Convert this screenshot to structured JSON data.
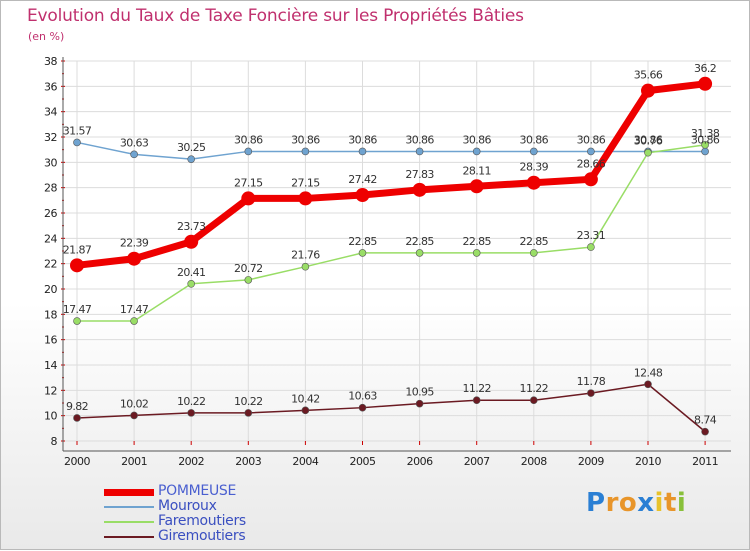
{
  "title": "Evolution du Taux de Taxe Foncière sur les Propriétés Bâties",
  "subtitle": "(en %)",
  "logo": {
    "text": "Proxiti",
    "letters": [
      "P",
      "r",
      "o",
      "x",
      "i",
      "t",
      "i"
    ],
    "colors": [
      "#2a7fd4",
      "#e8952a",
      "#e8952a",
      "#2a7fd4",
      "#e8c22a",
      "#e8952a",
      "#88c03a"
    ]
  },
  "chart_data": {
    "type": "line",
    "title": "Evolution du Taux de Taxe Foncière sur les Propriétés Bâties",
    "ylabel": "(en %)",
    "xlabel": "",
    "ylim": [
      8,
      38
    ],
    "yticks": [
      "8",
      "10",
      "12",
      "14",
      "16",
      "18",
      "20",
      "22",
      "24",
      "26",
      "28",
      "30",
      "32",
      "34",
      "36",
      "38"
    ],
    "categories": [
      "2000",
      "2001",
      "2002",
      "2003",
      "2004",
      "2005",
      "2006",
      "2007",
      "2008",
      "2009",
      "2010",
      "2011"
    ],
    "grid": true,
    "legend_position": "bottom-left",
    "series": [
      {
        "name": "POMMEUSE",
        "color": "#ee0000",
        "width": 7,
        "marker": 7,
        "values": [
          21.87,
          22.39,
          23.73,
          27.15,
          27.15,
          27.42,
          27.83,
          28.11,
          28.39,
          28.66,
          35.66,
          36.2
        ],
        "labels": [
          "21.87",
          "22.39",
          "23.73",
          "27.15",
          "27.15",
          "27.42",
          "27.83",
          "28.11",
          "28.39",
          "28.66",
          "35.66",
          "36.2"
        ]
      },
      {
        "name": "Mouroux",
        "color": "#6fa3d0",
        "width": 1.5,
        "marker": 3.5,
        "values": [
          31.57,
          30.63,
          30.25,
          30.86,
          30.86,
          30.86,
          30.86,
          30.86,
          30.86,
          30.86,
          30.86,
          30.86
        ],
        "labels": [
          "31.57",
          "30.63",
          "30.25",
          "30.86",
          "30.86",
          "30.86",
          "30.86",
          "30.86",
          "30.86",
          "30.86",
          "30.86",
          "30.86"
        ]
      },
      {
        "name": "Faremoutiers",
        "color": "#99dd66",
        "width": 1.5,
        "marker": 3.5,
        "values": [
          17.47,
          17.47,
          20.41,
          20.72,
          21.76,
          22.85,
          22.85,
          22.85,
          22.85,
          23.31,
          30.76,
          31.38
        ],
        "labels": [
          "17.47",
          "17.47",
          "20.41",
          "20.72",
          "21.76",
          "22.85",
          "22.85",
          "22.85",
          "22.85",
          "23.31",
          "30.76",
          "31.38"
        ]
      },
      {
        "name": "Giremoutiers",
        "color": "#6b1a22",
        "width": 1.5,
        "marker": 3.5,
        "values": [
          9.82,
          10.02,
          10.22,
          10.22,
          10.42,
          10.63,
          10.95,
          11.22,
          11.22,
          11.78,
          12.48,
          8.74
        ],
        "labels": [
          "9.82",
          "10.02",
          "10.22",
          "10.22",
          "10.42",
          "10.63",
          "10.95",
          "11.22",
          "11.22",
          "11.78",
          "12.48",
          "8.74"
        ]
      }
    ]
  }
}
